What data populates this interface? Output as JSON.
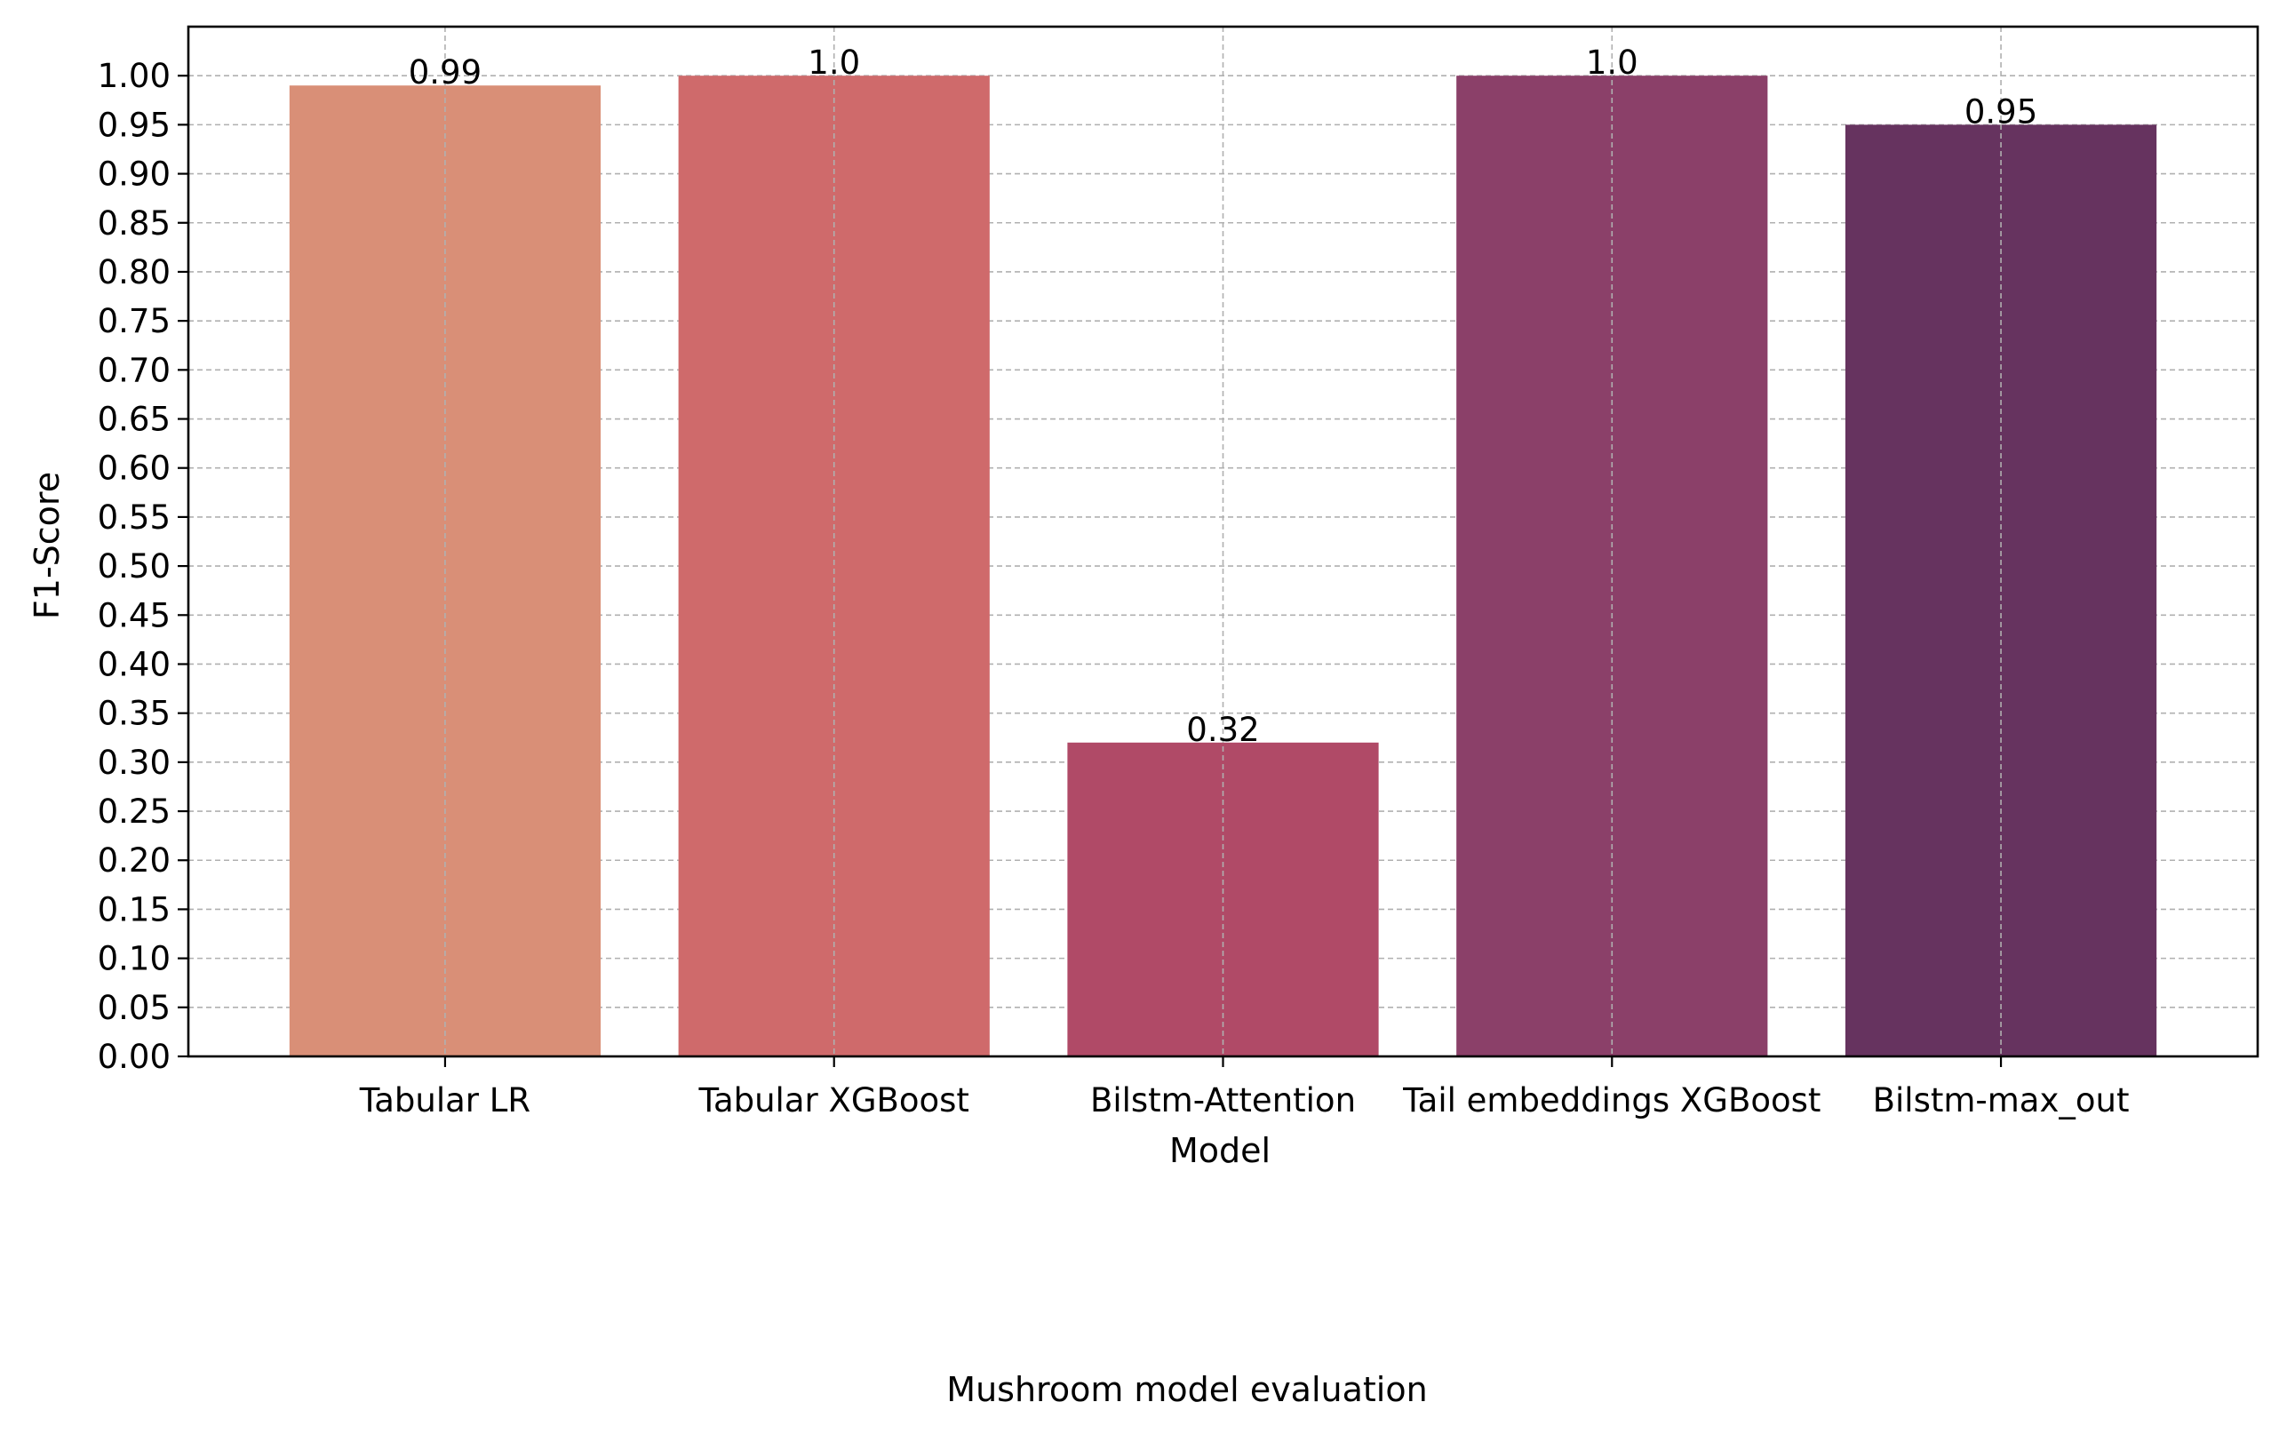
{
  "chart_data": {
    "type": "bar",
    "categories": [
      "Tabular LR",
      "Tabular XGBoost",
      "Bilstm-Attention",
      "Tail embeddings XGBoost",
      "Bilstm-max_out"
    ],
    "values": [
      0.99,
      1.0,
      0.32,
      1.0,
      0.95
    ],
    "value_labels": [
      "0.99",
      "1.0",
      "0.32",
      "1.0",
      "0.95"
    ],
    "colors": [
      "#d98f77",
      "#cf6a6b",
      "#b04a67",
      "#8b4069",
      "#66335f"
    ],
    "title": "",
    "caption": "Mushroom model evaluation",
    "xlabel": "Model",
    "ylabel": "F1-Score",
    "ylim": [
      0,
      1.05
    ],
    "yticks": [
      0.0,
      0.05,
      0.1,
      0.15,
      0.2,
      0.25,
      0.3,
      0.35,
      0.4,
      0.45,
      0.5,
      0.55,
      0.6,
      0.65,
      0.7,
      0.75,
      0.8,
      0.85,
      0.9,
      0.95,
      1.0
    ],
    "ytick_labels": [
      "0.00",
      "0.05",
      "0.10",
      "0.15",
      "0.20",
      "0.25",
      "0.30",
      "0.35",
      "0.40",
      "0.45",
      "0.50",
      "0.55",
      "0.60",
      "0.65",
      "0.70",
      "0.75",
      "0.80",
      "0.85",
      "0.90",
      "0.95",
      "1.00"
    ],
    "grid": true,
    "legend": "none"
  }
}
